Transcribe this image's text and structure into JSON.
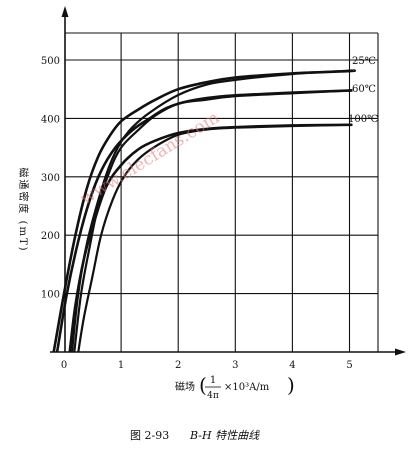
{
  "chart_data": {
    "type": "line",
    "ylabel": "磁通密度 (mT)",
    "xlabel_prefix": "磁场",
    "xlabel_fraction_num": "1",
    "xlabel_fraction_den": "4π",
    "xlabel_suffix": "×10³A/m",
    "caption_prefix": "图 2-93",
    "caption_title": "B-H 特性曲线",
    "watermark": "www.elecfans.com",
    "xlim": [
      -0.3,
      5.6
    ],
    "ylim": [
      0,
      550
    ],
    "x_ticks": [
      0,
      1,
      2,
      3,
      4,
      5
    ],
    "x_tick_labels": [
      "0",
      "1",
      "2",
      "3",
      "4",
      "5"
    ],
    "y_ticks": [
      100,
      200,
      300,
      400,
      500
    ],
    "y_tick_labels": [
      "100",
      "200",
      "300",
      "400",
      "500"
    ],
    "grid": true,
    "series": [
      {
        "name": "25℃",
        "color": "#111111",
        "loops": [
          [
            [
              -0.18,
              0
            ],
            [
              0.0,
              100
            ],
            [
              0.2,
              200
            ],
            [
              0.4,
              280
            ],
            [
              0.6,
              335
            ],
            [
              0.8,
              370
            ],
            [
              1.0,
              395
            ],
            [
              1.3,
              415
            ],
            [
              1.6,
              432
            ],
            [
              2.0,
              450
            ],
            [
              2.5,
              462
            ],
            [
              3.0,
              470
            ],
            [
              4.0,
              477
            ],
            [
              5.0,
              481
            ],
            [
              5.05,
              482
            ]
          ],
          [
            [
              5.05,
              482
            ],
            [
              4.0,
              476
            ],
            [
              3.0,
              466
            ],
            [
              2.5,
              458
            ],
            [
              2.0,
              440
            ],
            [
              1.5,
              410
            ],
            [
              1.2,
              385
            ],
            [
              1.0,
              360
            ],
            [
              0.8,
              320
            ],
            [
              0.6,
              260
            ],
            [
              0.4,
              185
            ],
            [
              0.25,
              100
            ],
            [
              0.14,
              0
            ]
          ]
        ]
      },
      {
        "name": "60℃",
        "color": "#111111",
        "loops": [
          [
            [
              -0.12,
              0
            ],
            [
              0.05,
              100
            ],
            [
              0.25,
              190
            ],
            [
              0.45,
              260
            ],
            [
              0.65,
              310
            ],
            [
              0.9,
              350
            ],
            [
              1.2,
              380
            ],
            [
              1.5,
              400
            ],
            [
              1.8,
              418
            ],
            [
              2.2,
              430
            ],
            [
              2.8,
              438
            ],
            [
              3.5,
              442
            ],
            [
              4.5,
              446
            ],
            [
              5.05,
              448
            ]
          ],
          [
            [
              5.05,
              448
            ],
            [
              4.0,
              443
            ],
            [
              3.0,
              438
            ],
            [
              2.5,
              432
            ],
            [
              2.0,
              425
            ],
            [
              1.6,
              405
            ],
            [
              1.3,
              380
            ],
            [
              1.0,
              350
            ],
            [
              0.8,
              310
            ],
            [
              0.6,
              250
            ],
            [
              0.45,
              180
            ],
            [
              0.3,
              100
            ],
            [
              0.18,
              0
            ]
          ]
        ]
      },
      {
        "name": "100℃",
        "color": "#111111",
        "loops": [
          [
            [
              0.1,
              0
            ],
            [
              0.2,
              80
            ],
            [
              0.35,
              160
            ],
            [
              0.55,
              230
            ],
            [
              0.75,
              285
            ],
            [
              1.0,
              320
            ],
            [
              1.3,
              347
            ],
            [
              1.6,
              362
            ],
            [
              2.0,
              375
            ],
            [
              2.5,
              382
            ],
            [
              3.0,
              385
            ],
            [
              4.0,
              388
            ],
            [
              5.05,
              389
            ]
          ],
          [
            [
              5.05,
              389
            ],
            [
              4.0,
              387
            ],
            [
              3.0,
              384
            ],
            [
              2.5,
              381
            ],
            [
              2.0,
              372
            ],
            [
              1.6,
              352
            ],
            [
              1.3,
              330
            ],
            [
              1.05,
              300
            ],
            [
              0.85,
              260
            ],
            [
              0.65,
              200
            ],
            [
              0.5,
              130
            ],
            [
              0.35,
              60
            ],
            [
              0.25,
              0
            ]
          ]
        ]
      }
    ]
  }
}
